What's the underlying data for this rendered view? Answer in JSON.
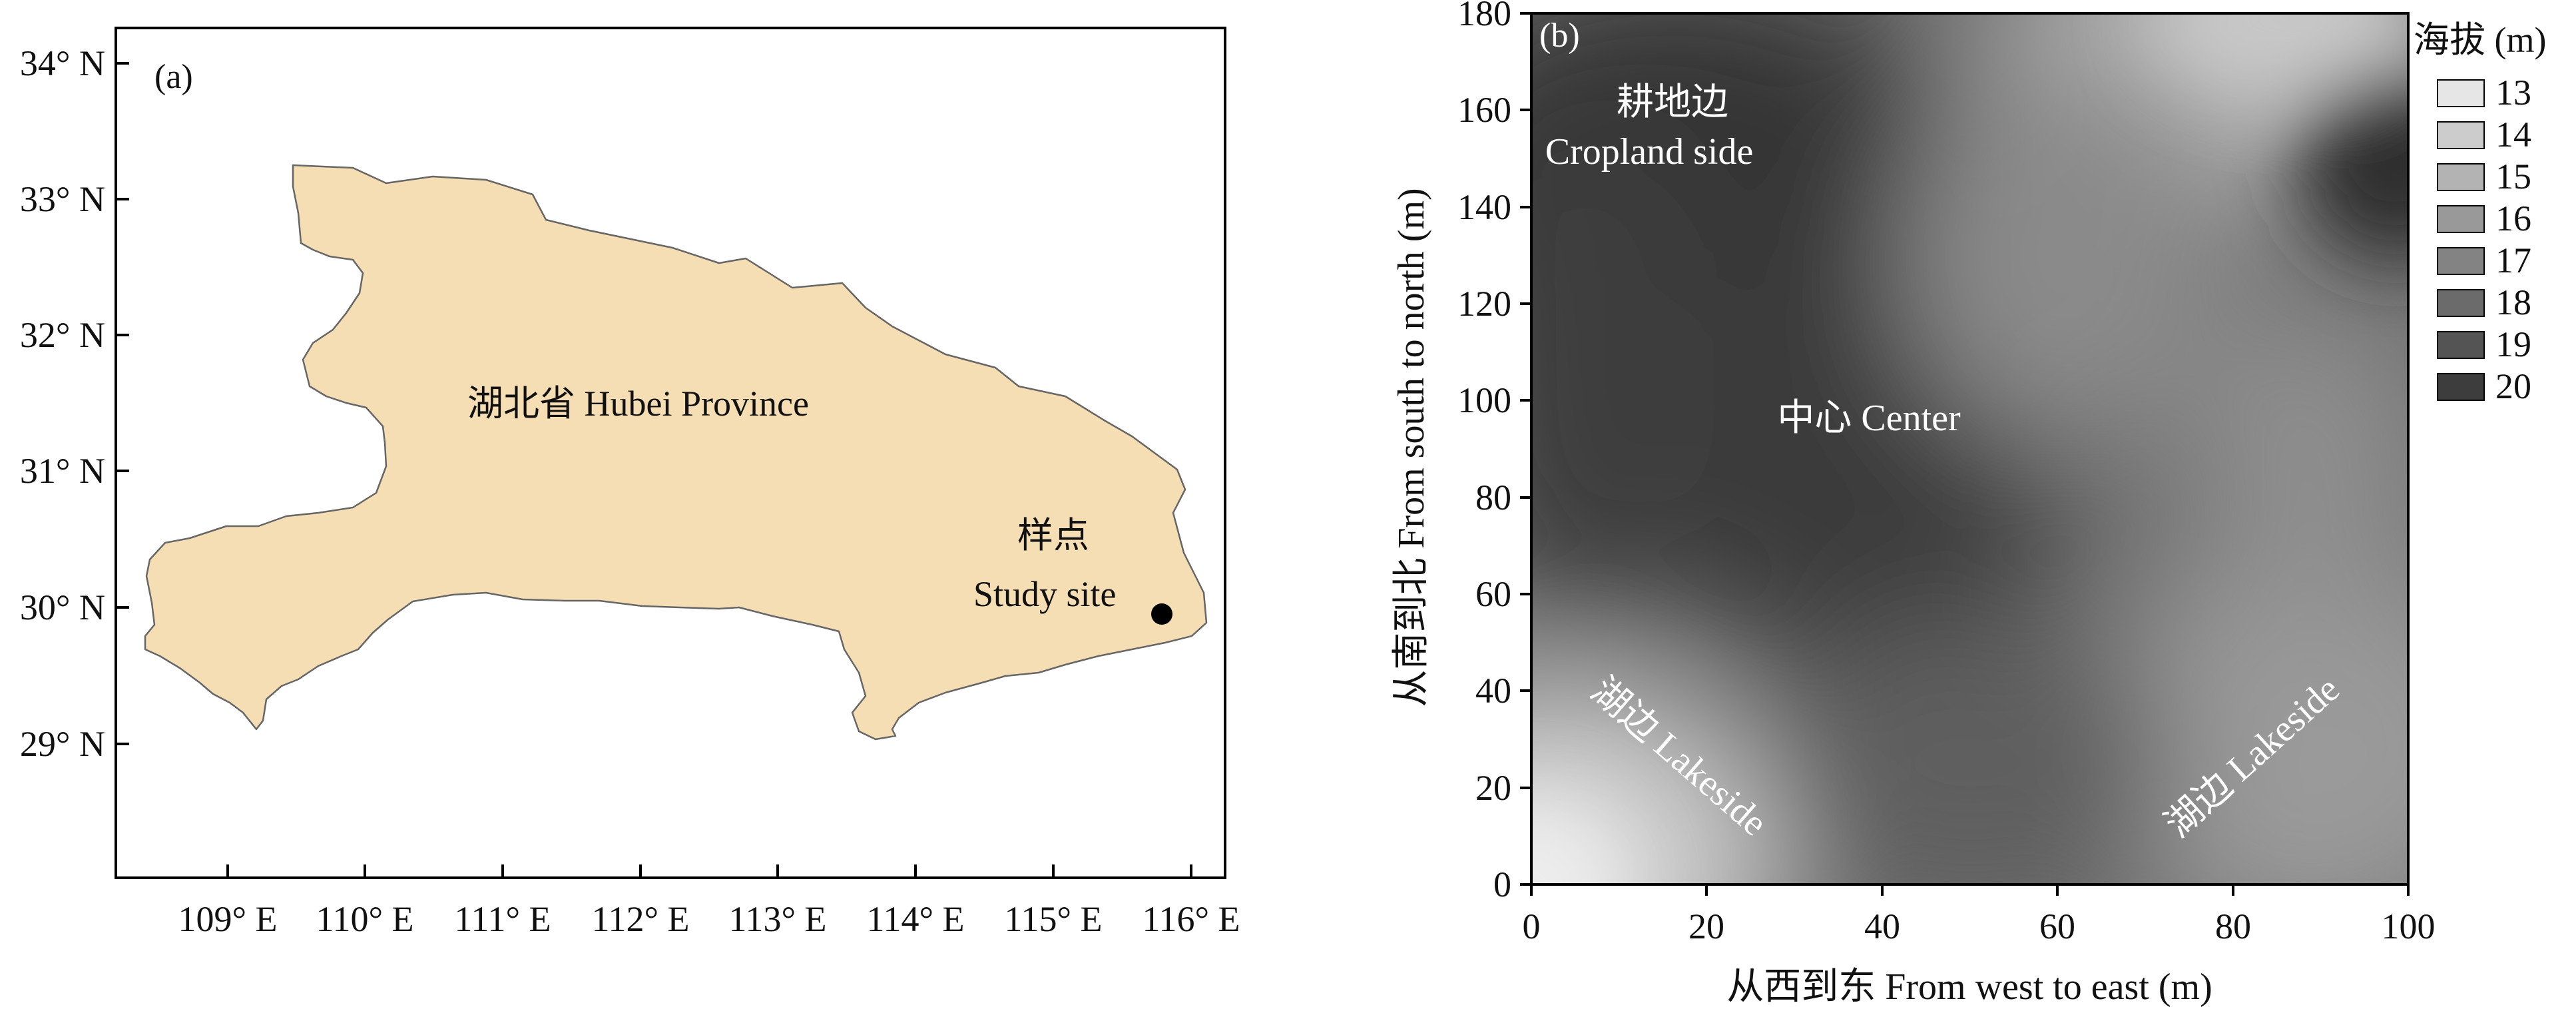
{
  "panel_a": {
    "label": "(a)",
    "lat_ticks": [
      "34° N",
      "33° N",
      "32° N",
      "31° N",
      "30° N",
      "29° N"
    ],
    "lon_ticks": [
      "109° E",
      "110° E",
      "111° E",
      "112° E",
      "113° E",
      "114° E",
      "115° E",
      "116° E"
    ],
    "province_label": "湖北省 Hubei Province",
    "site_label_cn": "样点",
    "site_label_en": "Study site",
    "province_fill": "#f5deb3",
    "province_stroke": "#666666"
  },
  "panel_b": {
    "label": "(b)",
    "xlabel": "从西到东 From west to east (m)",
    "ylabel": "从南到北 From south to north (m)",
    "x_ticks": [
      "0",
      "20",
      "40",
      "60",
      "80",
      "100"
    ],
    "y_ticks": [
      "0",
      "20",
      "40",
      "60",
      "80",
      "100",
      "120",
      "140",
      "160",
      "180"
    ],
    "legend_title": "海拔 (m)",
    "legend": [
      {
        "label": "13",
        "color": "#e6e6e6"
      },
      {
        "label": "14",
        "color": "#cccccc"
      },
      {
        "label": "15",
        "color": "#b3b3b3"
      },
      {
        "label": "16",
        "color": "#999999"
      },
      {
        "label": "17",
        "color": "#838383"
      },
      {
        "label": "18",
        "color": "#6b6b6b"
      },
      {
        "label": "19",
        "color": "#545454"
      },
      {
        "label": "20",
        "color": "#3d3d3d"
      }
    ],
    "annotations": {
      "cropland_cn": "耕地边",
      "cropland_en": "Cropland side",
      "center": "中心 Center",
      "lakeside_left": "湖边 Lakeside",
      "lakeside_right": "湖边 Lakeside"
    }
  }
}
